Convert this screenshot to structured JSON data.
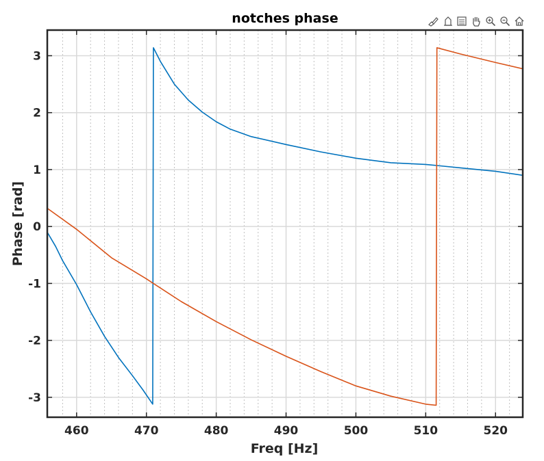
{
  "toolbar": {
    "buttons": [
      "brush-icon",
      "datatip-icon",
      "legend-icon",
      "pan-icon",
      "zoom-in-icon",
      "zoom-out-icon",
      "home-icon"
    ]
  },
  "chart_data": {
    "type": "line",
    "title": "notches phase",
    "xlabel": "Freq [Hz]",
    "ylabel": "Phase [rad]",
    "xlim": [
      455.8,
      523.9
    ],
    "ylim": [
      -3.35,
      3.45
    ],
    "xticks": [
      460,
      470,
      480,
      490,
      500,
      510,
      520
    ],
    "xtick_labels": [
      "460",
      "470",
      "480",
      "490",
      "500",
      "510",
      "520"
    ],
    "yticks": [
      -3,
      -2,
      -1,
      0,
      1,
      2,
      3
    ],
    "ytick_labels": [
      "-3",
      "-2",
      "-1",
      "0",
      "1",
      "2",
      "3"
    ],
    "minor_xgrid": [
      458,
      462,
      464,
      466,
      468,
      472,
      474,
      476,
      478,
      482,
      484,
      486,
      488,
      492,
      494,
      496,
      498,
      502,
      504,
      506,
      508,
      512,
      514,
      516,
      518,
      522
    ],
    "grid": true,
    "colors": {
      "axes": "#262626",
      "grid": "#d9d9d9",
      "minor_grid": "#bfbfbf"
    },
    "series": [
      {
        "color": "#0072BD",
        "points": [
          [
            455.8,
            -0.1
          ],
          [
            457,
            -0.35
          ],
          [
            458,
            -0.6
          ],
          [
            460,
            -1.02
          ],
          [
            462,
            -1.5
          ],
          [
            464,
            -1.93
          ],
          [
            466,
            -2.3
          ],
          [
            468,
            -2.62
          ],
          [
            469.5,
            -2.87
          ],
          [
            470.9,
            -3.12
          ],
          [
            471,
            3.14
          ],
          [
            472,
            2.9
          ],
          [
            474,
            2.5
          ],
          [
            476,
            2.22
          ],
          [
            478,
            2.01
          ],
          [
            480,
            1.84
          ],
          [
            482,
            1.71
          ],
          [
            485,
            1.58
          ],
          [
            490,
            1.44
          ],
          [
            495,
            1.31
          ],
          [
            500,
            1.2
          ],
          [
            505,
            1.12
          ],
          [
            510,
            1.09
          ],
          [
            515,
            1.03
          ],
          [
            520,
            0.97
          ],
          [
            523.9,
            0.9
          ]
        ]
      },
      {
        "color": "#D95319",
        "points": [
          [
            455.8,
            0.32
          ],
          [
            460,
            -0.05
          ],
          [
            465,
            -0.55
          ],
          [
            470,
            -0.92
          ],
          [
            471,
            -1.0
          ],
          [
            475,
            -1.32
          ],
          [
            480,
            -1.67
          ],
          [
            485,
            -1.99
          ],
          [
            490,
            -2.28
          ],
          [
            495,
            -2.55
          ],
          [
            500,
            -2.8
          ],
          [
            505,
            -2.98
          ],
          [
            510,
            -3.12
          ],
          [
            511.5,
            -3.14
          ],
          [
            511.6,
            3.14
          ],
          [
            515,
            3.03
          ],
          [
            520,
            2.88
          ],
          [
            523.9,
            2.77
          ]
        ]
      }
    ]
  }
}
